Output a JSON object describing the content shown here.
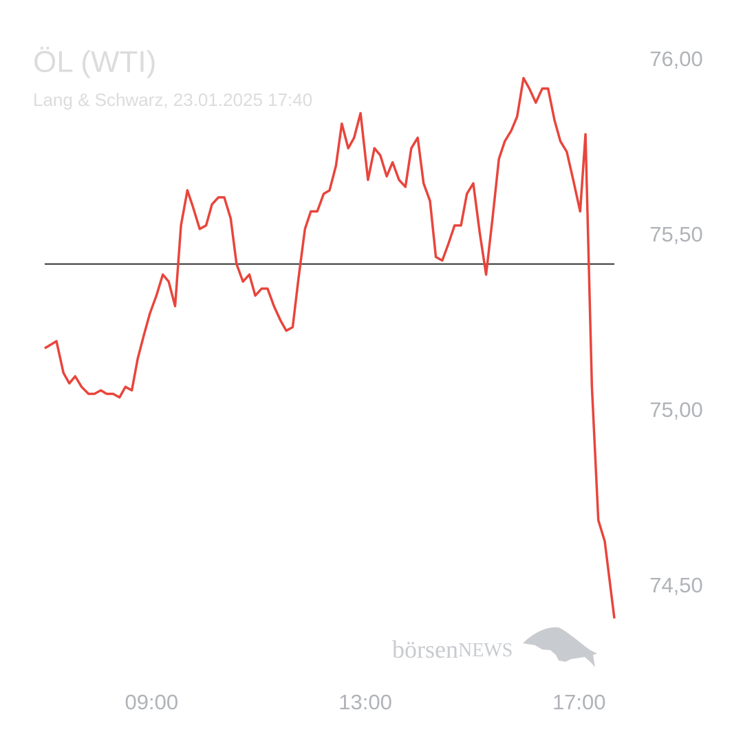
{
  "chart_data": {
    "type": "line",
    "title": "ÖL (WTI)",
    "subtitle": "Lang & Schwarz, 23.01.2025 17:40",
    "watermark": [
      "börsen",
      "NEWS"
    ],
    "xlim": [
      7,
      17.66
    ],
    "xticks": [
      {
        "value": 9,
        "label": "09:00"
      },
      {
        "value": 13,
        "label": "13:00"
      },
      {
        "value": 17,
        "label": "17:00"
      }
    ],
    "ylim": [
      74.4,
      76.0
    ],
    "yticks": [
      {
        "value": 76,
        "label": "76,00"
      },
      {
        "value": 75.5,
        "label": "75,50"
      },
      {
        "value": 75,
        "label": "75,00"
      },
      {
        "value": 74.5,
        "label": "74,50"
      }
    ],
    "reference_line": 75.42,
    "reference_color": "#333333",
    "grid": false,
    "x": [
      7.0,
      7.22,
      7.35,
      7.46,
      7.57,
      7.69,
      7.82,
      7.93,
      8.05,
      8.16,
      8.28,
      8.4,
      8.51,
      8.63,
      8.74,
      8.86,
      8.97,
      9.09,
      9.21,
      9.32,
      9.44,
      9.55,
      9.67,
      9.78,
      9.9,
      10.02,
      10.13,
      10.25,
      10.36,
      10.48,
      10.59,
      10.71,
      10.83,
      10.94,
      11.06,
      11.17,
      11.29,
      11.41,
      11.52,
      11.64,
      11.75,
      11.87,
      11.98,
      12.1,
      12.22,
      12.33,
      12.45,
      12.56,
      12.68,
      12.79,
      12.91,
      13.05,
      13.17,
      13.28,
      13.4,
      13.51,
      13.63,
      13.75,
      13.86,
      13.98,
      14.09,
      14.21,
      14.32,
      14.44,
      14.56,
      14.67,
      14.79,
      14.9,
      15.02,
      15.14,
      15.26,
      15.38,
      15.5,
      15.61,
      15.73,
      15.84,
      15.96,
      16.07,
      16.19,
      16.31,
      16.42,
      16.54,
      16.65,
      16.77,
      16.89,
      17.02,
      17.12,
      17.24,
      17.36,
      17.48,
      17.66
    ],
    "series": [
      {
        "name": "ÖL (WTI)",
        "color": "#e8453c",
        "values": [
          75.18,
          75.2,
          75.11,
          75.08,
          75.1,
          75.07,
          75.05,
          75.05,
          75.06,
          75.05,
          75.05,
          75.04,
          75.07,
          75.06,
          75.15,
          75.22,
          75.28,
          75.33,
          75.39,
          75.37,
          75.3,
          75.53,
          75.63,
          75.58,
          75.52,
          75.53,
          75.59,
          75.61,
          75.61,
          75.55,
          75.42,
          75.37,
          75.39,
          75.33,
          75.35,
          75.35,
          75.3,
          75.26,
          75.23,
          75.24,
          75.38,
          75.52,
          75.57,
          75.57,
          75.62,
          75.63,
          75.7,
          75.82,
          75.75,
          75.78,
          75.85,
          75.66,
          75.75,
          75.73,
          75.67,
          75.71,
          75.66,
          75.64,
          75.75,
          75.78,
          75.65,
          75.6,
          75.44,
          75.43,
          75.48,
          75.53,
          75.53,
          75.62,
          75.65,
          75.51,
          75.39,
          75.55,
          75.72,
          75.77,
          75.8,
          75.84,
          75.95,
          75.92,
          75.88,
          75.92,
          75.92,
          75.83,
          75.77,
          75.74,
          75.66,
          75.57,
          75.79,
          75.07,
          74.69,
          74.63,
          74.41
        ]
      }
    ]
  }
}
